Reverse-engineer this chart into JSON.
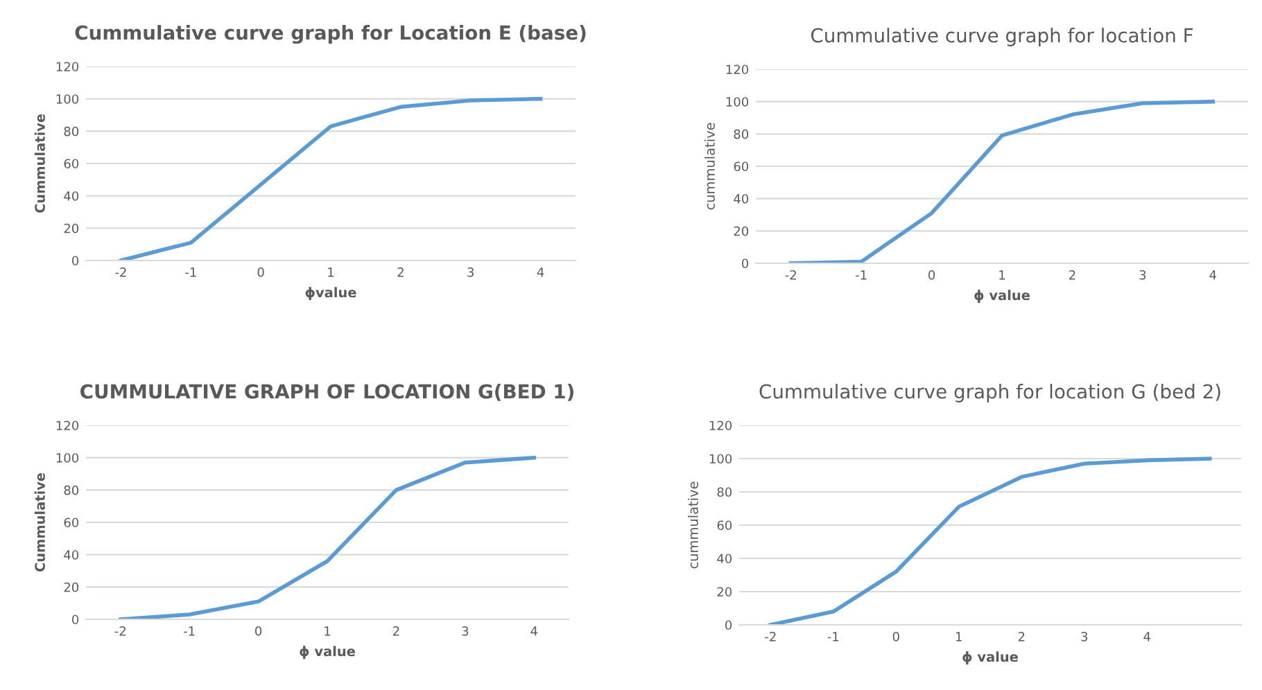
{
  "chart_data": [
    {
      "type": "line",
      "title": "Cummulative curve graph for Location E (base)",
      "xlabel": "ϕvalue",
      "ylabel": "Cummulative",
      "categories": [
        "-2",
        "-1",
        "0",
        "1",
        "2",
        "3",
        "4"
      ],
      "series": [
        {
          "color": "#5b9bd5",
          "values": [
            0,
            11,
            47,
            83,
            95,
            99,
            100
          ]
        }
      ],
      "ylim": [
        0,
        120
      ],
      "yticks": [
        0,
        20,
        40,
        60,
        80,
        100,
        120
      ],
      "grid": "y",
      "marker": "none"
    },
    {
      "type": "line",
      "title": "Cummulative curve graph for location F",
      "xlabel": "ϕ value",
      "ylabel": "cummulative",
      "categories": [
        "-2",
        "-1",
        "0",
        "1",
        "2",
        "3",
        "4"
      ],
      "series": [
        {
          "color": "#5b9bd5",
          "values": [
            0,
            1,
            31,
            79,
            92,
            99,
            100
          ]
        }
      ],
      "ylim": [
        0,
        120
      ],
      "yticks": [
        0,
        20,
        40,
        60,
        80,
        100,
        120
      ],
      "grid": "y",
      "marker": "none"
    },
    {
      "type": "line",
      "title": "CUMMULATIVE GRAPH OF LOCATION G(BED 1)",
      "xlabel": "ϕ value",
      "ylabel": "Cummulative",
      "categories": [
        "-2",
        "-1",
        "0",
        "1",
        "2",
        "3",
        "4"
      ],
      "series": [
        {
          "color": "#5b9bd5",
          "values": [
            0,
            3,
            11,
            36,
            80,
            97,
            100
          ]
        }
      ],
      "ylim": [
        0,
        120
      ],
      "yticks": [
        0,
        20,
        40,
        60,
        80,
        100,
        120
      ],
      "grid": "y",
      "marker": "none"
    },
    {
      "type": "line",
      "title": "Cummulative curve graph for location G (bed 2)",
      "xlabel": "ϕ value",
      "ylabel": "cummulative",
      "categories": [
        "-2",
        "-1",
        "0",
        "1",
        "2",
        "3",
        "4",
        null
      ],
      "series": [
        {
          "color": "#5b9bd5",
          "values": [
            0,
            8,
            32,
            71,
            89,
            97,
            99,
            100
          ]
        }
      ],
      "ylim": [
        0,
        120
      ],
      "yticks": [
        0,
        20,
        40,
        60,
        80,
        100,
        120
      ],
      "grid": "y",
      "marker": "none"
    }
  ]
}
